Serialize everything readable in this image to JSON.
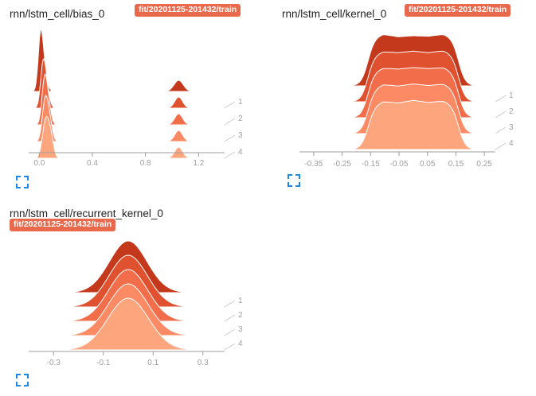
{
  "cards": [
    {
      "title": "rnn/lstm_cell/bias_0",
      "run": "fit/20201125-201432/train"
    },
    {
      "title": "rnn/lstm_cell/kernel_0",
      "run": "fit/20201125-201432/train"
    },
    {
      "title": "rnn/lstm_cell/recurrent_kernel_0",
      "run": "fit/20201125-201432/train"
    }
  ],
  "colors": {
    "step_fills": [
      "#c4381c",
      "#e0522f",
      "#f26d4a",
      "#fb8a65",
      "#fda67e"
    ],
    "axis": "#9e9e9e",
    "expand_icon": "#1e88e5"
  },
  "icons": {
    "expand": "fullscreen-expand-icon"
  },
  "chart_data": [
    {
      "type": "area",
      "title": "rnn/lstm_cell/bias_0",
      "xlim": [
        -0.08,
        1.42
      ],
      "x_ticks": [
        0.0,
        0.4,
        0.8,
        1.2
      ],
      "x_tick_labels": [
        "0.0",
        "0.4",
        "0.8",
        "1.2"
      ],
      "step_labels": [
        "1",
        "2",
        "3",
        "4"
      ],
      "steps": [
        0,
        1,
        2,
        3,
        4
      ],
      "series": [
        {
          "peaks": [
            {
              "c": 0.01,
              "w": 0.018,
              "h": 1.0
            },
            {
              "c": 0.04,
              "w": 0.02,
              "h": 0.35
            },
            {
              "c": 1.05,
              "w": 0.035,
              "h": 0.2
            }
          ]
        },
        {
          "peaks": [
            {
              "c": 0.03,
              "w": 0.02,
              "h": 0.8
            },
            {
              "c": 0.06,
              "w": 0.02,
              "h": 0.25
            },
            {
              "c": 1.05,
              "w": 0.03,
              "h": 0.2
            }
          ]
        },
        {
          "peaks": [
            {
              "c": 0.04,
              "w": 0.02,
              "h": 0.8
            },
            {
              "c": 0.07,
              "w": 0.02,
              "h": 0.3
            },
            {
              "c": 1.05,
              "w": 0.03,
              "h": 0.2
            }
          ]
        },
        {
          "peaks": [
            {
              "c": 0.045,
              "w": 0.022,
              "h": 0.75
            },
            {
              "c": 0.08,
              "w": 0.02,
              "h": 0.3
            },
            {
              "c": 1.05,
              "w": 0.03,
              "h": 0.2
            }
          ]
        },
        {
          "peaks": [
            {
              "c": 0.05,
              "w": 0.025,
              "h": 0.7
            },
            {
              "c": 0.09,
              "w": 0.02,
              "h": 0.3
            },
            {
              "c": 1.05,
              "w": 0.03,
              "h": 0.2
            }
          ]
        }
      ]
    },
    {
      "type": "area",
      "title": "rnn/lstm_cell/kernel_0",
      "xlim": [
        -0.4,
        0.3
      ],
      "x_ticks": [
        -0.35,
        -0.25,
        -0.15,
        -0.05,
        0.05,
        0.15,
        0.25
      ],
      "x_tick_labels": [
        "-0.35",
        "-0.25",
        "-0.15",
        "-0.05",
        "0.05",
        "0.15",
        "0.25"
      ],
      "step_labels": [
        "1",
        "2",
        "3",
        "4"
      ],
      "steps": [
        0,
        1,
        2,
        3,
        4
      ],
      "series": [
        {
          "plateau": [
            -0.16,
            0.16
          ],
          "ripple": [
            0.92,
            1.0,
            0.95,
            0.97,
            0.96,
            1.0,
            0.93
          ]
        },
        {
          "plateau": [
            -0.16,
            0.16
          ],
          "ripple": [
            0.9,
            0.97,
            0.95,
            0.98,
            0.95,
            0.99,
            0.92
          ]
        },
        {
          "plateau": [
            -0.16,
            0.16
          ],
          "ripple": [
            0.88,
            0.96,
            0.94,
            0.97,
            0.95,
            0.97,
            0.9
          ]
        },
        {
          "plateau": [
            -0.16,
            0.16
          ],
          "ripple": [
            0.85,
            0.95,
            0.92,
            0.96,
            0.93,
            0.96,
            0.88
          ]
        },
        {
          "plateau": [
            -0.16,
            0.16
          ],
          "ripple": [
            0.82,
            0.93,
            0.9,
            0.95,
            0.91,
            0.94,
            0.86
          ]
        }
      ]
    },
    {
      "type": "area",
      "title": "rnn/lstm_cell/recurrent_kernel_0",
      "xlim": [
        -0.4,
        0.4
      ],
      "x_ticks": [
        -0.3,
        -0.1,
        0.1,
        0.3
      ],
      "x_tick_labels": [
        "-0.3",
        "-0.1",
        "0.1",
        "0.3"
      ],
      "step_labels": [
        "1",
        "2",
        "3",
        "4"
      ],
      "steps": [
        0,
        1,
        2,
        3,
        4
      ],
      "series": [
        {
          "mean": 0.0,
          "std": 0.075
        },
        {
          "mean": 0.0,
          "std": 0.077
        },
        {
          "mean": 0.0,
          "std": 0.078
        },
        {
          "mean": 0.0,
          "std": 0.08
        },
        {
          "mean": 0.0,
          "std": 0.082
        }
      ]
    }
  ]
}
